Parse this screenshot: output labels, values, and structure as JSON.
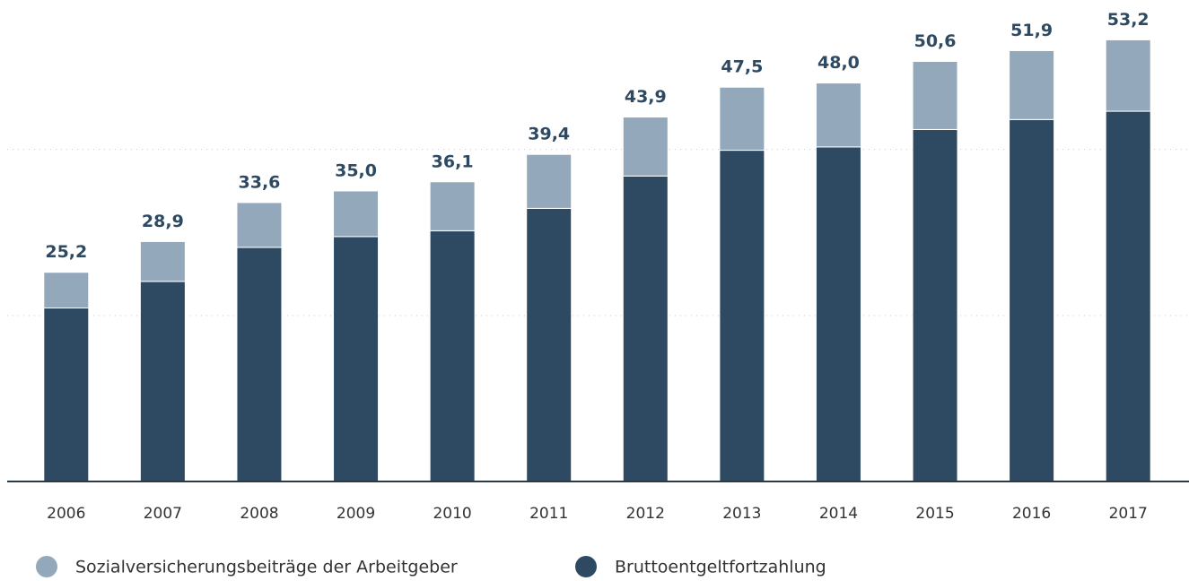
{
  "chart_data": {
    "type": "stacked_bar",
    "categories": [
      "2006",
      "2007",
      "2008",
      "2009",
      "2010",
      "2011",
      "2012",
      "2013",
      "2014",
      "2015",
      "2016",
      "2017"
    ],
    "series": [
      {
        "name": "Sozialversicherungsbeiträge der Arbeitgeber",
        "color": "#94a8bb",
        "values": [
          4.3,
          4.8,
          5.4,
          5.5,
          5.9,
          6.5,
          7.1,
          7.6,
          7.7,
          8.2,
          8.3,
          8.6
        ]
      },
      {
        "name": "Bruttoentgeltfortzahlung",
        "color": "#2e4a63",
        "values": [
          20.9,
          24.1,
          28.2,
          29.5,
          30.2,
          32.9,
          36.8,
          39.9,
          40.3,
          42.4,
          43.6,
          44.6
        ]
      }
    ],
    "totals": [
      25.2,
      28.9,
      33.6,
      35.0,
      36.1,
      39.4,
      43.9,
      47.5,
      48.0,
      50.6,
      51.9,
      53.2
    ],
    "total_labels": [
      "25,2",
      "28,9",
      "33,6",
      "35,0",
      "36,1",
      "39,4",
      "43,9",
      "47,5",
      "48,0",
      "50,6",
      "51,9",
      "53,2"
    ],
    "ylim": [
      0,
      58
    ],
    "yticks": [
      20,
      40
    ],
    "grid": true,
    "legend": "bottom"
  }
}
